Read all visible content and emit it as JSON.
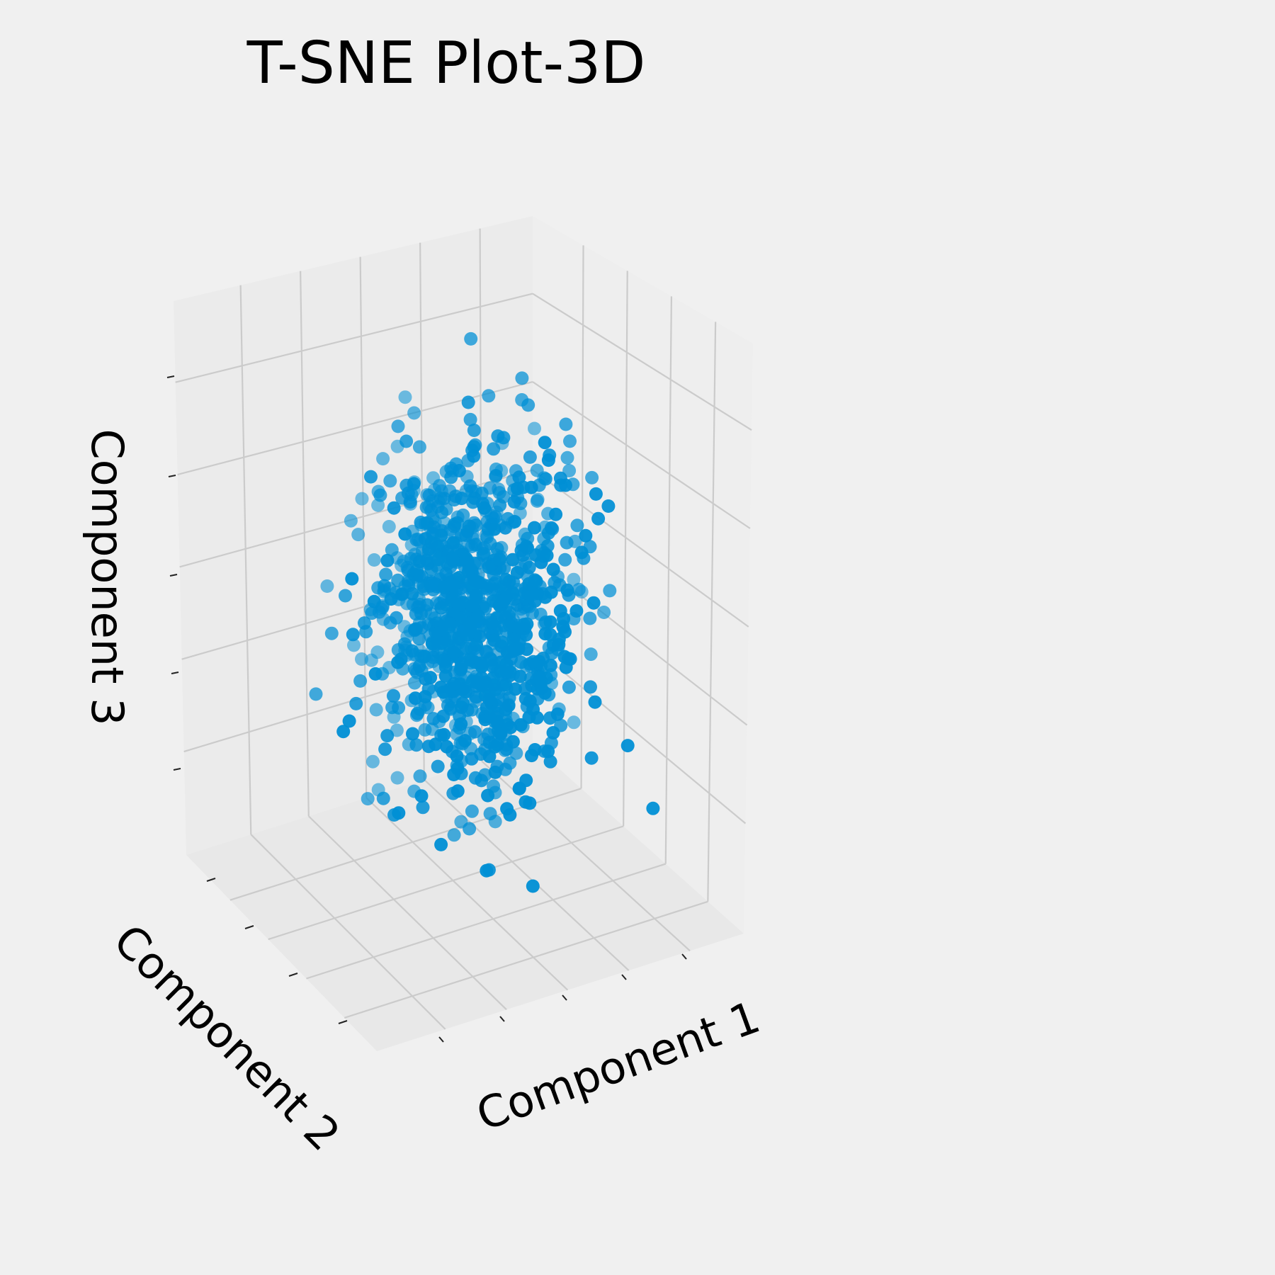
{
  "chart_data": {
    "type": "scatter",
    "projection": "3d",
    "title": "T-SNE Plot-3D",
    "xlabel": "Component 1",
    "ylabel": "Component 2",
    "zlabel": "Component 3",
    "tick_labels_visible": false,
    "grid": true,
    "legend": "none",
    "n_points": 1000,
    "point_distribution": "roughly normal cloud centered in the plot box",
    "colors": {
      "background": "#f0f0f0",
      "pane_back": "#ebebeb",
      "pane_side": "#eeeeee",
      "pane_floor": "#e8e8e8",
      "grid": "#cbcbcb",
      "point": "#008fd5"
    }
  }
}
